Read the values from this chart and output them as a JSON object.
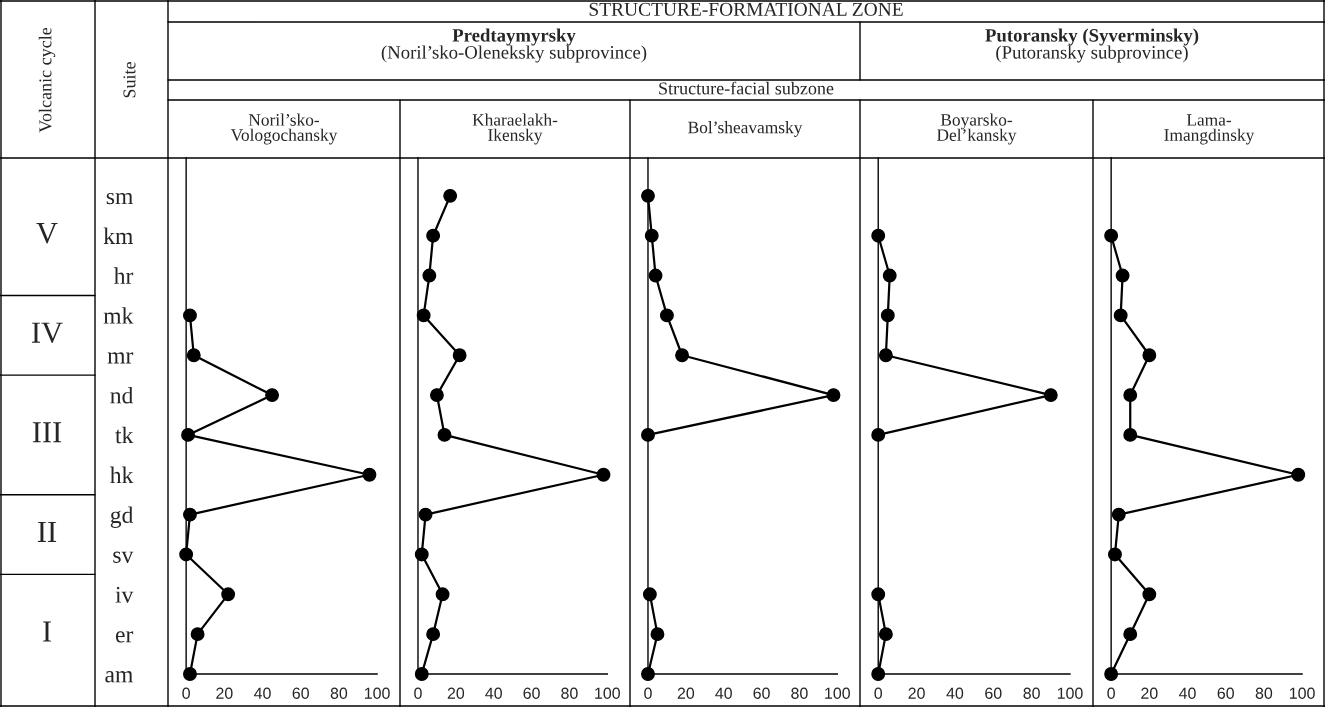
{
  "chart_data": [
    {
      "type": "line",
      "orientation": "horizontal",
      "title": "Noril’sko-\nVologochansky",
      "color": "#000000",
      "marker": "circle",
      "categories": [
        "sm",
        "km",
        "hr",
        "mk",
        "mr",
        "nd",
        "tk",
        "hk",
        "gd",
        "sv",
        "iv",
        "er",
        "am"
      ],
      "values": [
        null,
        null,
        null,
        2,
        4,
        45,
        1,
        96,
        2,
        0,
        22,
        6,
        2
      ],
      "xlim": [
        -9.5,
        112
      ],
      "xticks": [
        0,
        20,
        40,
        60,
        80,
        100
      ],
      "annotations": [
        "Volcanic cycle",
        "Suite",
        "STRUCTURE-FORMATIONAL ZONE",
        "Predtaymyrsky",
        "(Noril’sko-Oleneksky subprovince)",
        "Putoransky (Syverminsky)",
        "(Putoransky subprovince)",
        "Structure-facial subzone",
        "V",
        "IV",
        "III",
        "II",
        "I"
      ]
    },
    {
      "type": "line",
      "orientation": "horizontal",
      "title": "Kharaelakh-\nIkensky",
      "color": "#000000",
      "marker": "circle",
      "categories": [
        null,
        null,
        null,
        null,
        null,
        null,
        null,
        null,
        null,
        null,
        null,
        null,
        null
      ],
      "values": [
        17,
        8,
        6,
        3,
        22,
        10,
        14,
        98,
        4,
        2,
        13,
        8,
        2
      ],
      "xlim": [
        -9.5,
        112
      ],
      "xticks": [
        0,
        20,
        40,
        60,
        80,
        100
      ],
      "tick_labels": "x"
    },
    {
      "type": "line",
      "orientation": "horizontal",
      "title": "Bol’sheavamsky",
      "color": "#000000",
      "marker": "circle",
      "categories": [
        null,
        null,
        null,
        null,
        null,
        null,
        null,
        null,
        null,
        null,
        null,
        null,
        null
      ],
      "values": [
        0,
        2,
        4,
        10,
        18,
        98,
        0,
        null,
        null,
        null,
        1,
        5,
        0
      ],
      "xlim": [
        -9.5,
        112
      ],
      "xticks": [
        0,
        20,
        40,
        60,
        80,
        100
      ],
      "tick_labels": "x"
    },
    {
      "type": "line",
      "orientation": "horizontal",
      "title": "Boyarsko-\nDel’kansky",
      "color": "#000000",
      "marker": "circle",
      "categories": [
        null,
        null,
        null,
        null,
        null,
        null,
        null,
        null,
        null,
        null,
        null,
        null,
        null
      ],
      "values": [
        null,
        0,
        6,
        5,
        4,
        90,
        0,
        null,
        null,
        null,
        0,
        4,
        0
      ],
      "xlim": [
        -9.5,
        112
      ],
      "xticks": [
        0,
        20,
        40,
        60,
        80,
        100
      ],
      "tick_labels": "x"
    },
    {
      "type": "line",
      "orientation": "horizontal",
      "title": "Lama-\nImangdinsky",
      "color": "#000000",
      "marker": "circle",
      "categories": [
        null,
        null,
        null,
        null,
        null,
        null,
        null,
        null,
        null,
        null,
        null,
        null,
        null
      ],
      "values": [
        null,
        0,
        6,
        5,
        20,
        10,
        10,
        98,
        4,
        2,
        20,
        10,
        0
      ],
      "xlim": [
        -9.5,
        112
      ],
      "xticks": [
        0,
        20,
        40,
        60,
        80,
        100
      ],
      "tick_labels": "x"
    }
  ]
}
